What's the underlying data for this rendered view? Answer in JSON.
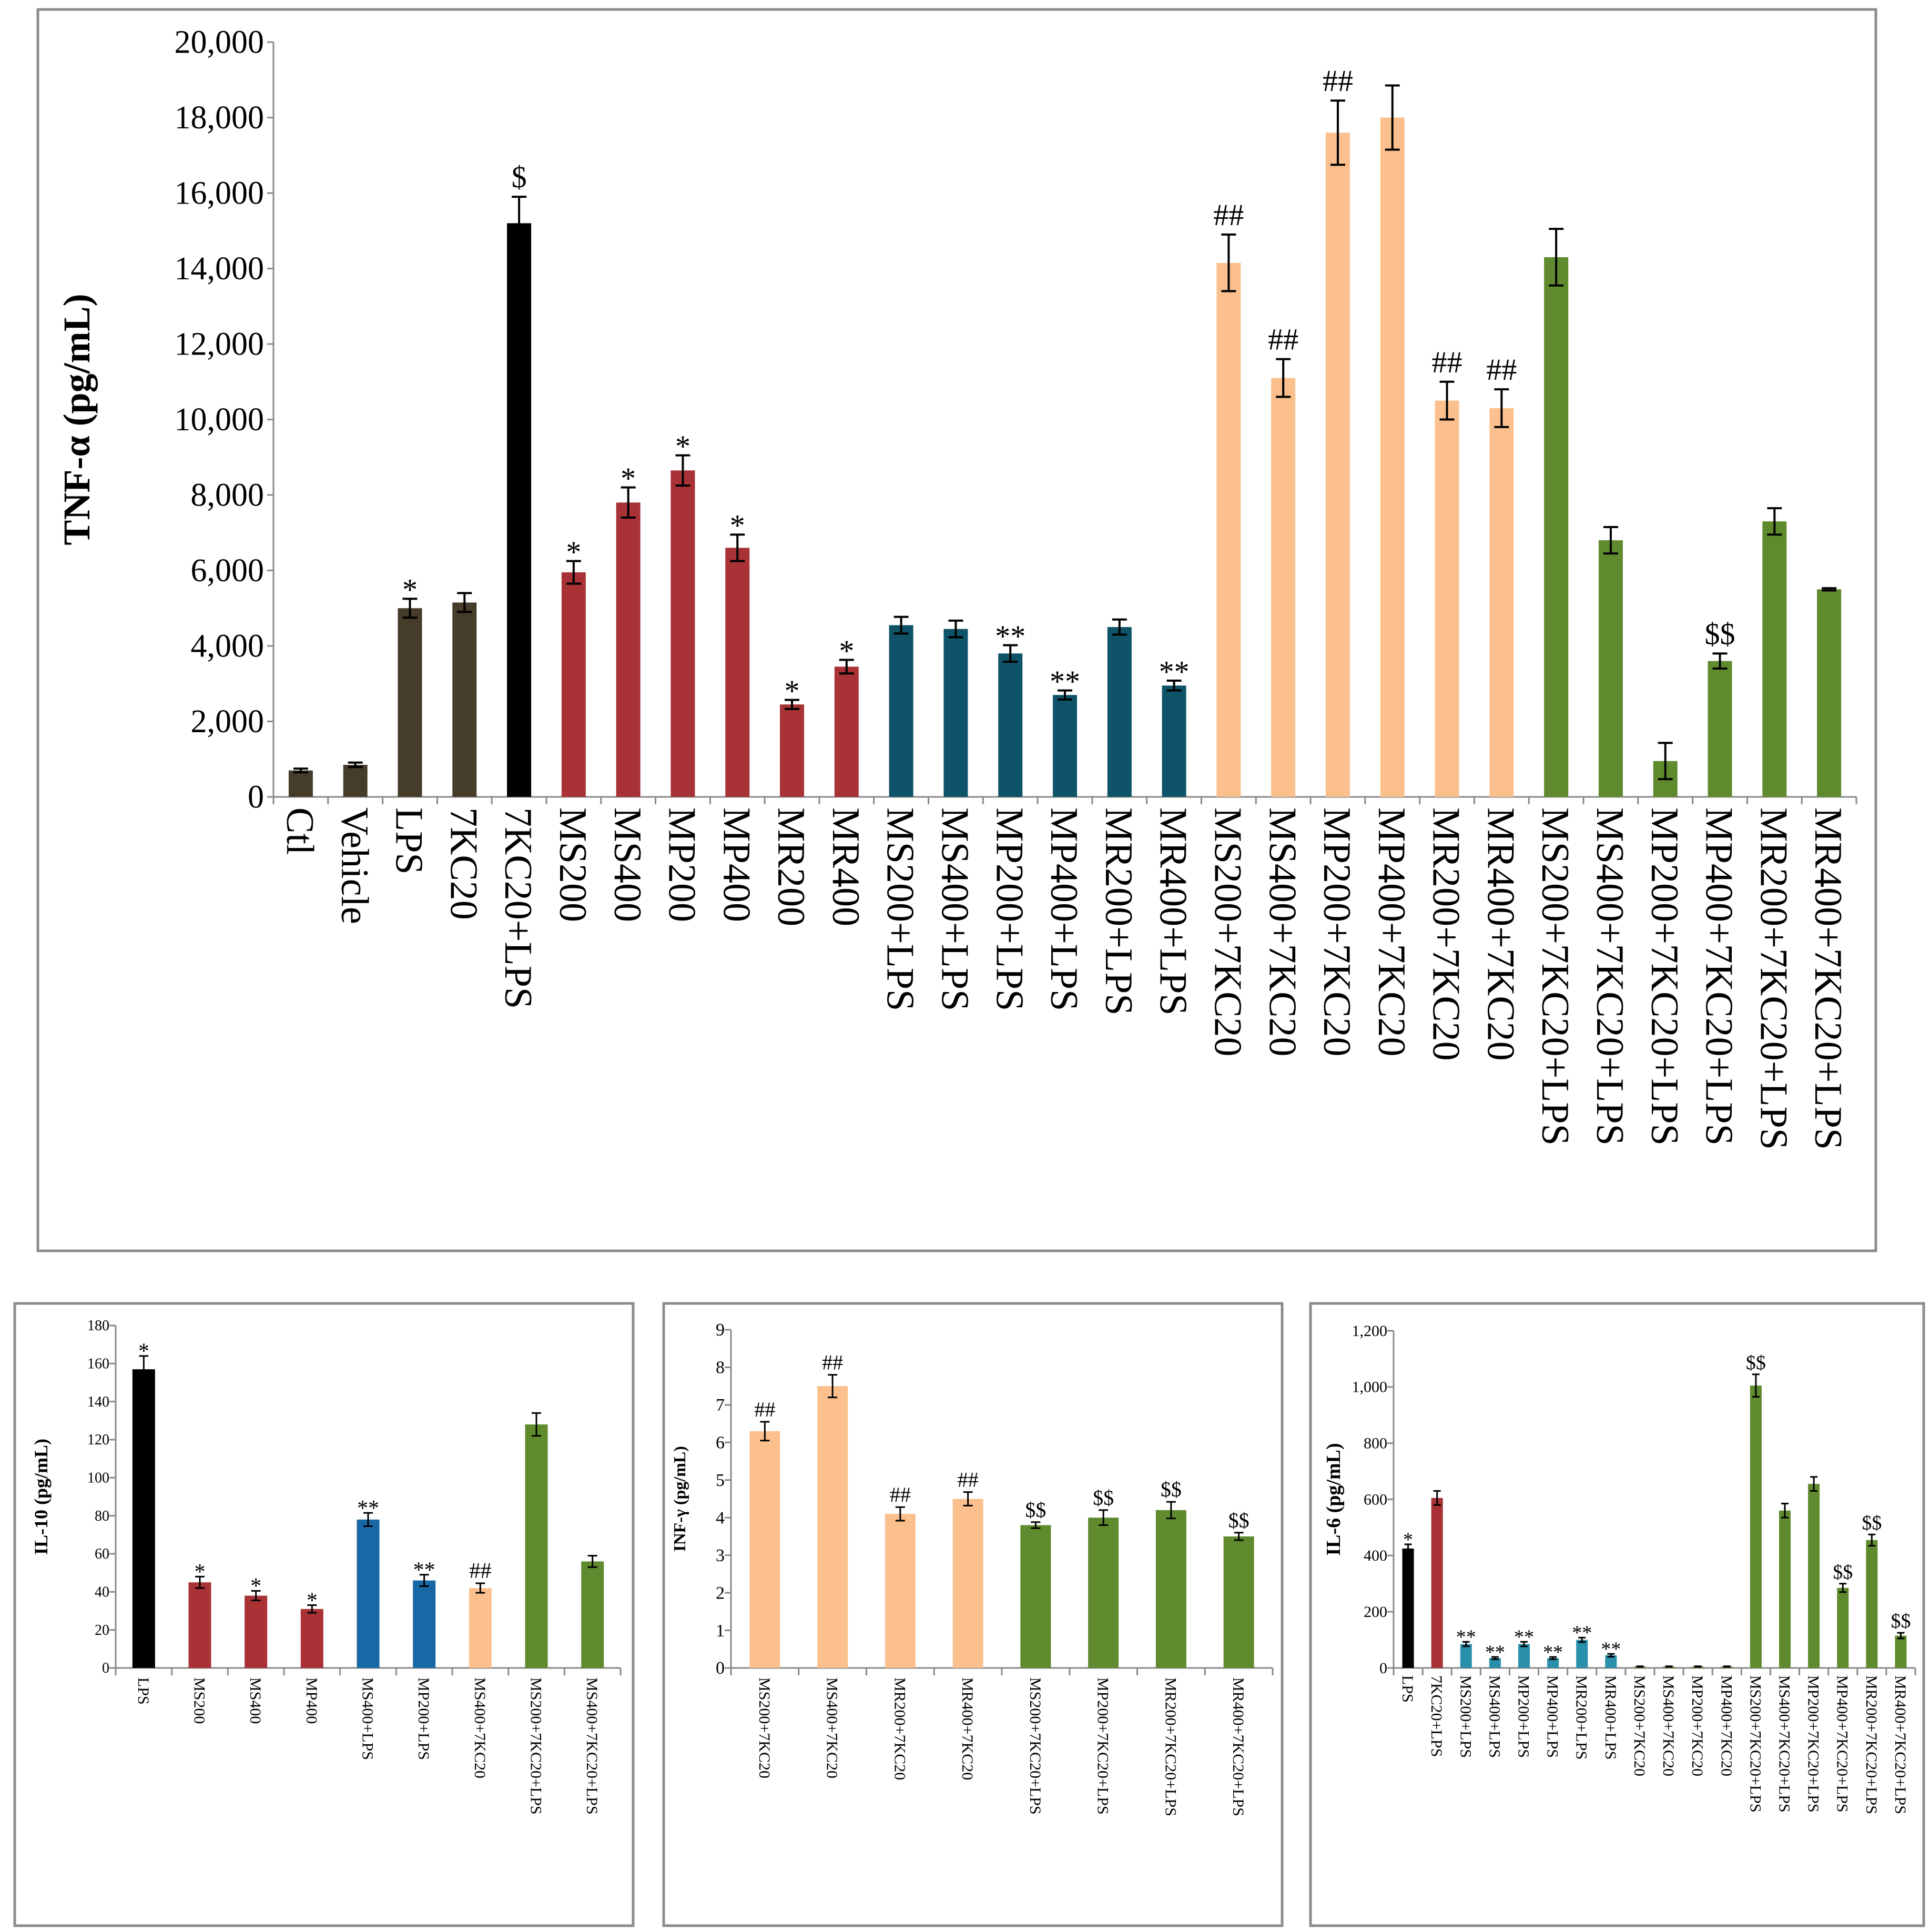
{
  "colors": {
    "dark_olive": "#463C2A",
    "black": "#000000",
    "red": "#A83236",
    "teal": "#0E5367",
    "peach": "#FBC08D",
    "green": "#5F8A2E",
    "blue": "#1868A6",
    "cyan": "#2A8FAA",
    "frame": "#8c8c8c"
  },
  "chart_data": [
    {
      "id": "tnf",
      "type": "bar",
      "title": "",
      "xlabel": "",
      "ylabel": "TNF-α (pg/mL)",
      "ylim": [
        0,
        20000
      ],
      "yticks": [
        0,
        2000,
        4000,
        6000,
        8000,
        10000,
        12000,
        14000,
        16000,
        18000,
        20000
      ],
      "ytick_labels": [
        "0",
        "2,000",
        "4,000",
        "6,000",
        "8,000",
        "10,000",
        "12,000",
        "14,000",
        "16,000",
        "18,000",
        "20,000"
      ],
      "categories": [
        "Ctl",
        "Vehicle",
        "LPS",
        "7KC20",
        "7KC20+LPS",
        "MS200",
        "MS400",
        "MP200",
        "MP400",
        "MR200",
        "MR400",
        "MS200+LPS",
        "MS400+LPS",
        "MP200+LPS",
        "MP400+LPS",
        "MR200+LPS",
        "MR400+LPS",
        "MS200+7KC20",
        "MS400+7KC20",
        "MP200+7KC20",
        "MP400+7KC20",
        "MR200+7KC20",
        "MR400+7KC20",
        "MS200+7KC20+LPS",
        "MS400+7KC20+LPS",
        "MP200+7KC20+LPS",
        "MP400+7KC20+LPS",
        "MR200+7KC20+LPS",
        "MR400+7KC20+LPS"
      ],
      "values": [
        700,
        850,
        5000,
        5150,
        15200,
        5950,
        7800,
        8650,
        6600,
        2450,
        3450,
        4550,
        4450,
        3800,
        2700,
        4500,
        2950,
        14150,
        11100,
        17600,
        18000,
        10500,
        10300,
        14300,
        6800,
        950,
        3600,
        7300,
        5500
      ],
      "errors": [
        50,
        60,
        250,
        250,
        700,
        300,
        400,
        400,
        350,
        120,
        180,
        220,
        220,
        220,
        120,
        200,
        130,
        750,
        500,
        850,
        850,
        500,
        500,
        750,
        350,
        480,
        200,
        350,
        30
      ],
      "annotations": [
        "",
        "",
        "*",
        "",
        "$",
        "*",
        "*",
        "*",
        "*",
        "*",
        "*",
        "",
        "",
        "**",
        "**",
        "",
        "**",
        "##",
        "##",
        "##",
        "",
        "##",
        "##",
        "",
        "",
        "",
        "$$",
        "",
        ""
      ],
      "bar_colors": [
        "dark_olive",
        "dark_olive",
        "dark_olive",
        "dark_olive",
        "black",
        "red",
        "red",
        "red",
        "red",
        "red",
        "red",
        "teal",
        "teal",
        "teal",
        "teal",
        "teal",
        "teal",
        "peach",
        "peach",
        "peach",
        "peach",
        "peach",
        "peach",
        "green",
        "green",
        "green",
        "green",
        "green",
        "green"
      ]
    },
    {
      "id": "il10",
      "type": "bar",
      "title": "",
      "xlabel": "",
      "ylabel": "IL-10 (pg/mL)",
      "ylim": [
        0,
        180
      ],
      "yticks": [
        0,
        20,
        40,
        60,
        80,
        100,
        120,
        140,
        160,
        180
      ],
      "ytick_labels": [
        "0",
        "20",
        "40",
        "60",
        "80",
        "100",
        "120",
        "140",
        "160",
        "180"
      ],
      "categories": [
        "LPS",
        "MS200",
        "MS400",
        "MP400",
        "MS400+LPS",
        "MP200+LPS",
        "MS400+7KC20",
        "MS200+7KC20+LPS",
        "MS400+7KC20+LPS"
      ],
      "values": [
        157,
        45,
        38,
        31,
        78,
        46,
        42,
        128,
        56
      ],
      "errors": [
        7,
        3,
        2.5,
        2,
        3.5,
        3,
        2.5,
        6,
        3
      ],
      "annotations": [
        "*",
        "*",
        "*",
        "*",
        "**",
        "**",
        "##",
        "",
        ""
      ],
      "bar_colors": [
        "black",
        "red",
        "red",
        "red",
        "blue",
        "blue",
        "peach",
        "green",
        "green"
      ]
    },
    {
      "id": "ifng",
      "type": "bar",
      "title": "",
      "xlabel": "",
      "ylabel": "INF-γ (pg/mL)",
      "ylim": [
        0,
        9
      ],
      "yticks": [
        0,
        1,
        2,
        3,
        4,
        5,
        6,
        7,
        8,
        9
      ],
      "ytick_labels": [
        "0",
        "1",
        "2",
        "3",
        "4",
        "5",
        "6",
        "7",
        "8",
        "9"
      ],
      "categories": [
        "MS200+7KC20",
        "MS400+7KC20",
        "MR200+7KC20",
        "MR400+7KC20",
        "MS200+7KC20+LPS",
        "MP200+7KC20+LPS",
        "MR200+7KC20+LPS",
        "MR400+7KC20+LPS"
      ],
      "values": [
        6.3,
        7.5,
        4.1,
        4.5,
        3.8,
        4.0,
        4.2,
        3.5
      ],
      "errors": [
        0.25,
        0.3,
        0.18,
        0.18,
        0.08,
        0.2,
        0.22,
        0.1
      ],
      "annotations": [
        "##",
        "##",
        "##",
        "##",
        "$$",
        "$$",
        "$$",
        "$$"
      ],
      "bar_colors": [
        "peach",
        "peach",
        "peach",
        "peach",
        "green",
        "green",
        "green",
        "green"
      ]
    },
    {
      "id": "il6",
      "type": "bar",
      "title": "",
      "xlabel": "",
      "ylabel": "IL-6 (pg/mL)",
      "ylim": [
        0,
        1200
      ],
      "yticks": [
        0,
        200,
        400,
        600,
        800,
        1000,
        1200
      ],
      "ytick_labels": [
        "0",
        "200",
        "400",
        "600",
        "800",
        "1,000",
        "1,200"
      ],
      "categories": [
        "LPS",
        "7KC20+LPS",
        "MS200+LPS",
        "MS400+LPS",
        "MP200+LPS",
        "MP400+LPS",
        "MR200+LPS",
        "MR400+LPS",
        "MS200+7KC20",
        "MS400+7KC20",
        "MP200+7KC20",
        "MP400+7KC20",
        "MS200+7KC20+LPS",
        "MS400+7KC20+LPS",
        "MP200+7KC20+LPS",
        "MP400+7KC20+LPS",
        "MR200+7KC20+LPS",
        "MR400+7KC20+LPS"
      ],
      "values": [
        425,
        605,
        85,
        35,
        85,
        35,
        100,
        45,
        5,
        5,
        5,
        5,
        1005,
        560,
        655,
        285,
        455,
        115
      ],
      "errors": [
        15,
        25,
        8,
        4,
        8,
        4,
        8,
        5,
        1,
        1,
        1,
        1,
        40,
        25,
        25,
        15,
        20,
        10
      ],
      "annotations": [
        "*",
        "",
        "**",
        "**",
        "**",
        "**",
        "**",
        "**",
        "",
        "",
        "",
        "",
        "$$",
        "",
        "",
        "$$",
        "$$",
        "$$"
      ],
      "bar_colors": [
        "black",
        "red",
        "cyan",
        "cyan",
        "cyan",
        "cyan",
        "cyan",
        "cyan",
        "green",
        "green",
        "green",
        "green",
        "green",
        "green",
        "green",
        "green",
        "green",
        "green"
      ]
    }
  ]
}
